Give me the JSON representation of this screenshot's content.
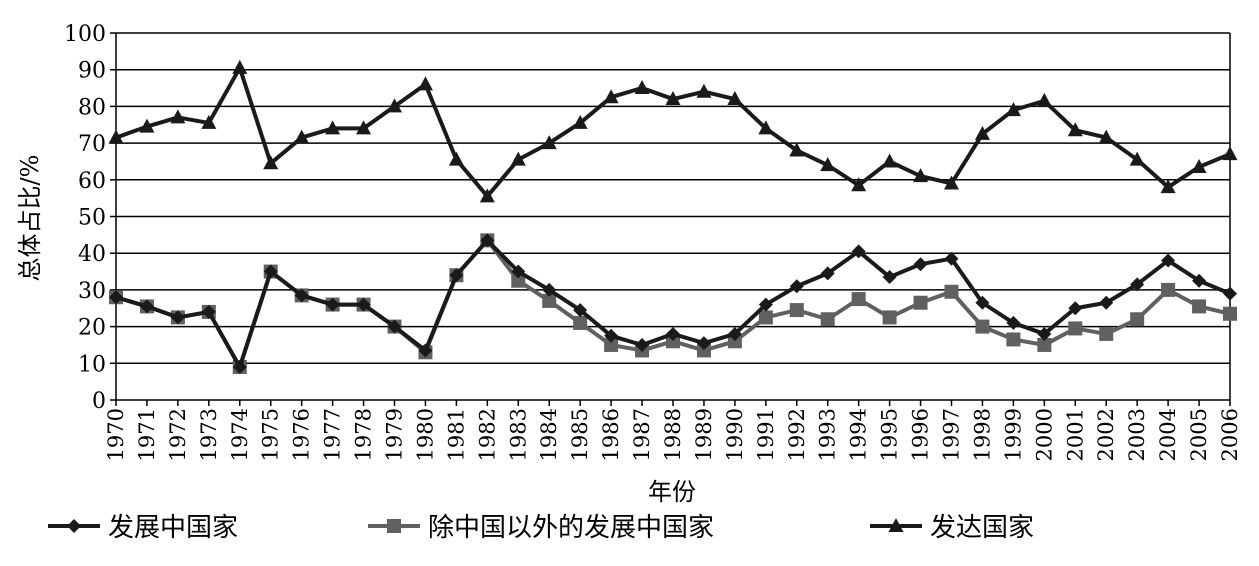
{
  "chart_data": {
    "type": "line",
    "title": "",
    "xlabel": "年份",
    "ylabel": "总体占比/%",
    "ylim": [
      0,
      100
    ],
    "yticks": [
      0,
      10,
      20,
      30,
      40,
      50,
      60,
      70,
      80,
      90,
      100
    ],
    "grid": true,
    "legend_position": "bottom",
    "categories": [
      "1970",
      "1971",
      "1972",
      "1973",
      "1974",
      "1975",
      "1976",
      "1977",
      "1978",
      "1979",
      "1980",
      "1981",
      "1982",
      "1983",
      "1984",
      "1985",
      "1986",
      "1987",
      "1988",
      "1989",
      "1990",
      "1991",
      "1992",
      "1993",
      "1994",
      "1995",
      "1996",
      "1997",
      "1998",
      "1999",
      "2000",
      "2001",
      "2002",
      "2003",
      "2004",
      "2005",
      "2006"
    ],
    "series": [
      {
        "name": "发展中国家",
        "marker": "diamond",
        "color": "#1a1a1a",
        "values": [
          28,
          25.5,
          22.5,
          24,
          9,
          35,
          28.5,
          26,
          26,
          20,
          13.5,
          34,
          43.5,
          35,
          30,
          24.5,
          17.5,
          15,
          18,
          15.5,
          18,
          26,
          31,
          34.5,
          40.5,
          33.5,
          37,
          38.5,
          26.5,
          21,
          18,
          25,
          26.5,
          31.5,
          38,
          32.5,
          29
        ]
      },
      {
        "name": "除中国以外的发展中国家",
        "marker": "square",
        "color": "#606060",
        "values": [
          28,
          25.5,
          22.5,
          24,
          9,
          35,
          28.5,
          26,
          26,
          20,
          13,
          34,
          43.5,
          32.5,
          27,
          21,
          15,
          13.5,
          16,
          13.5,
          16,
          22.5,
          24.5,
          22,
          27.5,
          22.5,
          26.5,
          29.5,
          20,
          16.5,
          15,
          19.5,
          18,
          22,
          30,
          25.5,
          23.5
        ]
      },
      {
        "name": "发达国家",
        "marker": "triangle",
        "color": "#1a1a1a",
        "values": [
          71.5,
          74.5,
          77,
          75.5,
          90.5,
          64.5,
          71.5,
          74,
          74,
          80,
          86,
          65.5,
          55.5,
          65.5,
          70,
          75.5,
          82.5,
          85,
          82,
          84,
          82,
          74,
          68,
          64,
          58.5,
          65,
          61,
          59,
          72.5,
          79,
          81.5,
          73.5,
          71.5,
          65.5,
          58,
          63.5,
          67
        ]
      }
    ]
  }
}
